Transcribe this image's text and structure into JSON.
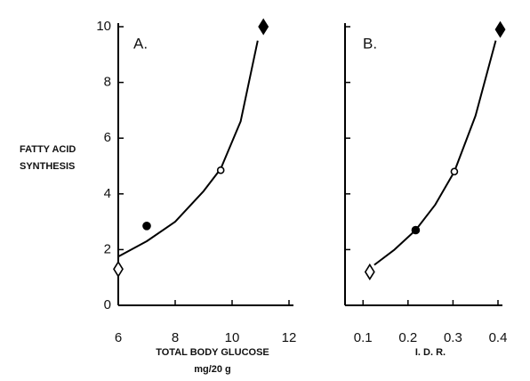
{
  "chart_data": [
    {
      "type": "scatter",
      "title": "A.",
      "ylabel": [
        "FATTY ACID",
        "SYNTHESIS"
      ],
      "xlabel": [
        "TOTAL BODY GLUCOSE",
        "mg/20 g"
      ],
      "xlim": [
        6,
        12
      ],
      "xticks": [
        6,
        8,
        10,
        12
      ],
      "ylim": [
        0,
        10
      ],
      "yticks": [
        0,
        2,
        4,
        6,
        8,
        10
      ],
      "ytick_labels": true,
      "series": [
        {
          "type": "line",
          "color": "#000000",
          "x": [
            6,
            7,
            8,
            9,
            9.6,
            10.3,
            10.9
          ],
          "values": [
            1.75,
            2.3,
            3.0,
            4.1,
            4.9,
            6.6,
            9.5
          ]
        },
        {
          "type": "scatter",
          "color": "#000000",
          "x": [
            6,
            7,
            9.6,
            11.1
          ],
          "values": [
            1.3,
            2.85,
            4.85,
            10
          ],
          "markers": [
            "diamond-open",
            "circle-filled",
            "circle-open",
            "diamond-filled"
          ]
        }
      ]
    },
    {
      "type": "scatter",
      "title": "B.",
      "xlabel": [
        "I. D. R."
      ],
      "xlim": [
        0.06,
        0.4
      ],
      "xticks": [
        0.1,
        0.2,
        0.3,
        0.4
      ],
      "ylim": [
        0,
        10
      ],
      "yticks": [
        0,
        2,
        4,
        6,
        8,
        10
      ],
      "ytick_labels": false,
      "series": [
        {
          "type": "line",
          "color": "#000000",
          "x": [
            0.125,
            0.17,
            0.217,
            0.26,
            0.303,
            0.35,
            0.395
          ],
          "values": [
            1.45,
            2.0,
            2.7,
            3.6,
            4.8,
            6.8,
            9.5
          ]
        },
        {
          "type": "scatter",
          "color": "#000000",
          "x": [
            0.115,
            0.217,
            0.303,
            0.405
          ],
          "values": [
            1.2,
            2.7,
            4.8,
            9.9
          ],
          "markers": [
            "diamond-open",
            "circle-filled",
            "circle-open",
            "diamond-filled"
          ]
        }
      ]
    }
  ]
}
